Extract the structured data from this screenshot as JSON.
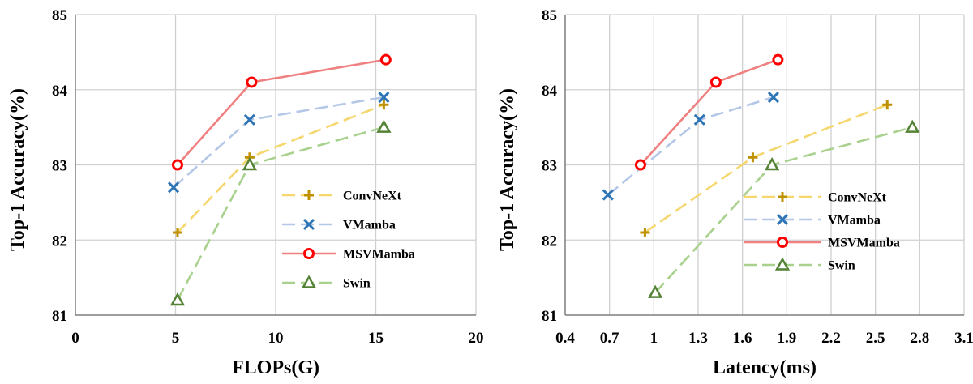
{
  "chart_data": [
    {
      "type": "line",
      "xlabel": "FLOPs(G)",
      "ylabel": "Top-1 Accuracy(%)",
      "xlim": [
        0,
        20
      ],
      "ylim": [
        81,
        85
      ],
      "xticks": [
        "0",
        "5",
        "10",
        "15",
        "20"
      ],
      "yticks": [
        "81",
        "82",
        "83",
        "84",
        "85"
      ],
      "grid": true,
      "legend_position": "center-right",
      "series": [
        {
          "name": "ConvNeXt",
          "color": "#f5d76e",
          "marker": "plus",
          "dash": "long-dash",
          "points": [
            [
              5.1,
              82.1
            ],
            [
              8.7,
              83.1
            ],
            [
              15.4,
              83.8
            ]
          ]
        },
        {
          "name": "VMamba",
          "color": "#b4c7e7",
          "marker": "x",
          "dash": "long-dash",
          "points": [
            [
              4.9,
              82.7
            ],
            [
              8.7,
              83.6
            ],
            [
              15.4,
              83.9
            ]
          ]
        },
        {
          "name": "MSVMamba",
          "color": "#f08080",
          "marker": "circle",
          "dash": "solid",
          "points": [
            [
              5.1,
              83.0
            ],
            [
              8.8,
              84.1
            ],
            [
              15.5,
              84.4
            ]
          ]
        },
        {
          "name": "Swin",
          "color": "#a9d18e",
          "marker": "triangle",
          "dash": "long-dash",
          "points": [
            [
              5.1,
              81.2
            ],
            [
              8.7,
              83.0
            ],
            [
              15.4,
              83.5
            ]
          ]
        }
      ]
    },
    {
      "type": "line",
      "xlabel": "Latency(ms)",
      "ylabel": "Top-1 Accuracy(%)",
      "xlim": [
        0.4,
        3.1
      ],
      "ylim": [
        81,
        85
      ],
      "xticks": [
        "0.4",
        "0.7",
        "1",
        "1.3",
        "1.6",
        "1.9",
        "2.2",
        "2.5",
        "2.8",
        "3.1"
      ],
      "yticks": [
        "81",
        "82",
        "83",
        "84",
        "85"
      ],
      "grid": true,
      "legend_position": "center-right",
      "series": [
        {
          "name": "ConvNeXt",
          "color": "#f5d76e",
          "marker": "plus",
          "dash": "long-dash",
          "points": [
            [
              0.94,
              82.1
            ],
            [
              1.67,
              83.1
            ],
            [
              2.58,
              83.8
            ]
          ]
        },
        {
          "name": "VMamba",
          "color": "#b4c7e7",
          "marker": "x",
          "dash": "long-dash",
          "points": [
            [
              0.69,
              82.6
            ],
            [
              1.31,
              83.6
            ],
            [
              1.81,
              83.9
            ]
          ]
        },
        {
          "name": "MSVMamba",
          "color": "#f08080",
          "marker": "circle",
          "dash": "solid",
          "points": [
            [
              0.91,
              83.0
            ],
            [
              1.42,
              84.1
            ],
            [
              1.84,
              84.4
            ]
          ]
        },
        {
          "name": "Swin",
          "color": "#a9d18e",
          "marker": "triangle",
          "dash": "long-dash",
          "points": [
            [
              1.01,
              81.3
            ],
            [
              1.8,
              83.0
            ],
            [
              2.75,
              83.5
            ]
          ]
        }
      ]
    }
  ],
  "marker_colors": {
    "plus": "#bf9000",
    "x": "#2e75b6",
    "circle": "#ff0000",
    "triangle": "#548235"
  }
}
